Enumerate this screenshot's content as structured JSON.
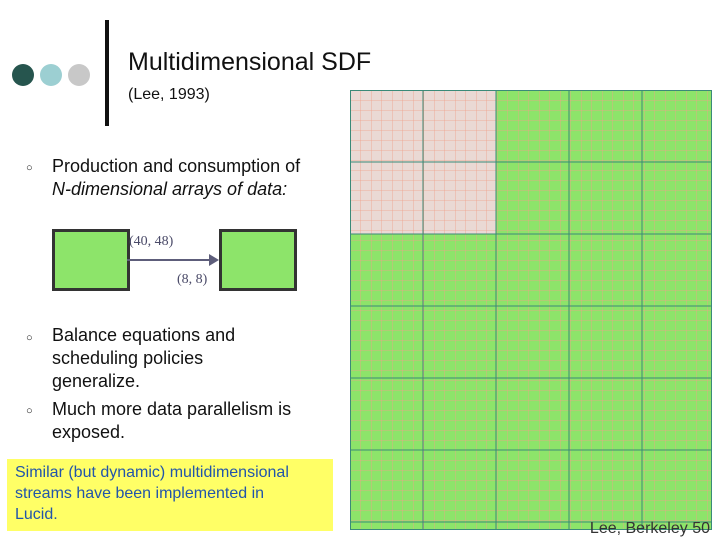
{
  "title": "Multidimensional SDF",
  "subtitle": "(Lee, 1993)",
  "bullets": [
    {
      "lines": [
        "Production and consumption of",
        "N-dimensional arrays of data:"
      ]
    },
    {
      "lines": [
        "Balance equations and",
        "scheduling policies",
        "generalize."
      ]
    },
    {
      "lines": [
        "Much more data parallelism is",
        "exposed."
      ]
    }
  ],
  "diagram": {
    "produce_rate": "(40, 48)",
    "consume_rate": "(8, 8)"
  },
  "callout": [
    "Similar (but dynamic) multidimensional",
    "streams have been implemented in",
    "Lucid."
  ],
  "footer": "Lee, Berkeley 50",
  "colors": {
    "green": "#8de46a",
    "pink": "#ead9d4",
    "grid_fine": "#f0a08a",
    "grid_coarse": "#3b8a78",
    "dot_dark": "#26554e",
    "dot_teal": "#9ccfd2",
    "dot_gray": "#c8c8c8"
  }
}
